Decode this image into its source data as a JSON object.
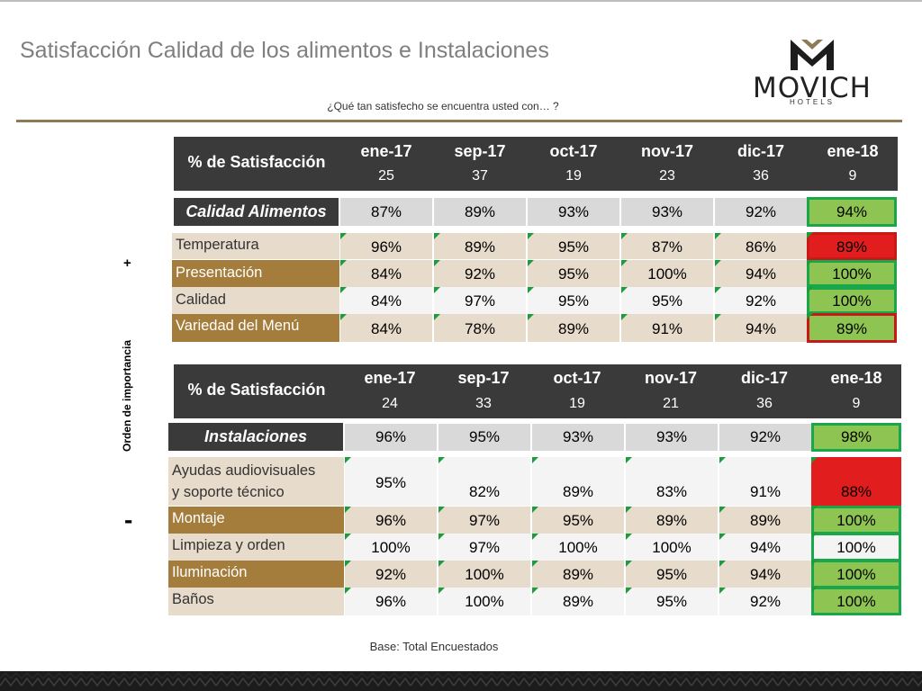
{
  "title": "Satisfacción Calidad de los alimentos e Instalaciones",
  "subtitle": "¿Qué tan satisfecho se encuentra usted con… ?",
  "logo": {
    "name": "MOVICH",
    "tagline": "HOTELS"
  },
  "side": {
    "axis_label": "Orden de importancia",
    "plus": "+",
    "minus": "-"
  },
  "colors": {
    "header": "#3a3a3a",
    "light_row": "#e7dccb",
    "dark_row": "#a47d3c",
    "summary_cell": "#d9d9d9",
    "green": "#8ec552",
    "red": "#e11d1d",
    "accent": "#8c7b55"
  },
  "table1": {
    "header_label": "% de Satisfacción",
    "months": [
      "ene-17",
      "sep-17",
      "oct-17",
      "nov-17",
      "dic-17",
      "ene-18"
    ],
    "counts": [
      "25",
      "37",
      "19",
      "23",
      "36",
      "9"
    ],
    "summary_label": "Calidad Alimentos",
    "summary_values": [
      "87%",
      "89%",
      "93%",
      "93%",
      "92%",
      "94%"
    ],
    "rows": [
      {
        "label": "Temperatura",
        "values": [
          "96%",
          "89%",
          "95%",
          "87%",
          "86%",
          "89%"
        ]
      },
      {
        "label": "Presentación",
        "values": [
          "84%",
          "92%",
          "95%",
          "100%",
          "94%",
          "100%"
        ]
      },
      {
        "label": "Calidad",
        "values": [
          "84%",
          "97%",
          "95%",
          "95%",
          "92%",
          "100%"
        ]
      },
      {
        "label": "Variedad del Menú",
        "values": [
          "84%",
          "78%",
          "89%",
          "91%",
          "94%",
          "89%"
        ]
      }
    ]
  },
  "table2": {
    "header_label": "% de Satisfacción",
    "months": [
      "ene-17",
      "sep-17",
      "oct-17",
      "nov-17",
      "dic-17",
      "ene-18"
    ],
    "counts": [
      "24",
      "33",
      "19",
      "21",
      "36",
      "9"
    ],
    "summary_label": "Instalaciones",
    "summary_values": [
      "96%",
      "95%",
      "93%",
      "93%",
      "92%",
      "98%"
    ],
    "rows": [
      {
        "label_line1": "Ayudas audiovisuales",
        "label_line2": "y soporte técnico",
        "values": [
          "95%",
          "82%",
          "89%",
          "83%",
          "91%",
          "88%"
        ]
      },
      {
        "label": "Montaje",
        "values": [
          "96%",
          "97%",
          "95%",
          "89%",
          "89%",
          "100%"
        ]
      },
      {
        "label": "Limpieza y orden",
        "values": [
          "100%",
          "97%",
          "100%",
          "100%",
          "94%",
          "100%"
        ]
      },
      {
        "label": "Iluminación",
        "values": [
          "92%",
          "100%",
          "89%",
          "95%",
          "94%",
          "100%"
        ]
      },
      {
        "label": "Baños",
        "values": [
          "96%",
          "100%",
          "89%",
          "95%",
          "92%",
          "100%"
        ]
      }
    ]
  },
  "base_note": "Base: Total Encuestados"
}
